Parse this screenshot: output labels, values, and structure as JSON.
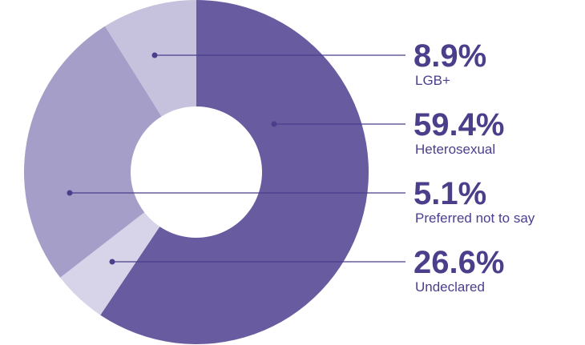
{
  "chart_data": {
    "type": "donut",
    "categories": [
      "LGB+",
      "Heterosexual",
      "Preferred not to say",
      "Undeclared"
    ],
    "values": [
      8.9,
      59.4,
      5.1,
      26.6
    ],
    "value_labels": [
      "8.9%",
      "59.4%",
      "5.1%",
      "26.6%"
    ],
    "colors": [
      "#c6c1dd",
      "#685b9f",
      "#d7d3e8",
      "#a59ec8"
    ]
  }
}
